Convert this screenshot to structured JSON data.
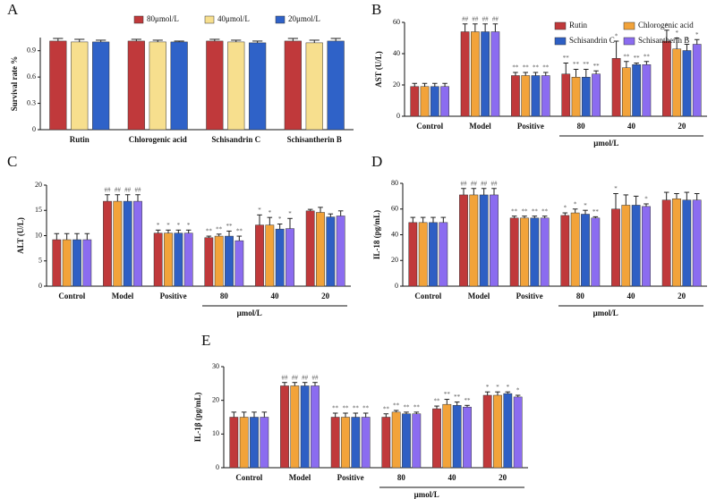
{
  "chart_data": [
    {
      "type": "bar",
      "label": "A",
      "ylabel": "Survival rate %",
      "legend": "top",
      "categories": [
        "Rutin",
        "Chlorogenic acid",
        "Schisandrin C",
        "Schisantherin B"
      ],
      "ylim": [
        0,
        1.05
      ],
      "yticks": [
        0,
        0.3,
        0.6,
        0.9
      ],
      "series": [
        {
          "name": "80μmol/L",
          "color": "#c0393b",
          "values": [
            1.01,
            1.01,
            1.01,
            1.01
          ],
          "errors": [
            0.03,
            0.02,
            0.02,
            0.03
          ]
        },
        {
          "name": "40μmol/L",
          "color": "#f7df8e",
          "values": [
            1.0,
            1.0,
            1.0,
            0.99
          ],
          "errors": [
            0.03,
            0.02,
            0.02,
            0.03
          ]
        },
        {
          "name": "20μmol/L",
          "color": "#2f62c8",
          "values": [
            1.0,
            1.0,
            0.99,
            1.01
          ],
          "errors": [
            0.02,
            0.01,
            0.02,
            0.03
          ]
        }
      ]
    },
    {
      "type": "bar",
      "label": "B",
      "ylabel": "AST (U/L)",
      "legend": "top-right",
      "x_label": "μmol/L",
      "categories": [
        "Control",
        "Model",
        "Positive",
        "80",
        "40",
        "20"
      ],
      "ylim": [
        0,
        60
      ],
      "yticks": [
        0,
        20,
        40,
        60
      ],
      "series": [
        {
          "name": "Rutin",
          "color": "#c0393b",
          "values": [
            19,
            54,
            26,
            27,
            37,
            48
          ],
          "errors": [
            2,
            5,
            2,
            7,
            11,
            7
          ],
          "annotations": [
            null,
            "##",
            "**",
            "**",
            "*",
            "*"
          ]
        },
        {
          "name": "Chlorogenic acid",
          "color": "#f2a33a",
          "values": [
            19,
            54,
            26,
            25,
            31,
            43
          ],
          "errors": [
            2,
            5,
            2,
            5,
            4,
            7
          ],
          "annotations": [
            null,
            "##",
            "**",
            "**",
            "**",
            "*"
          ]
        },
        {
          "name": "Schisandrin C",
          "color": "#2e5fc4",
          "values": [
            19,
            54,
            26,
            25,
            33,
            42
          ],
          "errors": [
            2,
            5,
            2,
            5,
            1,
            4
          ],
          "annotations": [
            null,
            "##",
            "**",
            "**",
            "**",
            "*"
          ]
        },
        {
          "name": "Schisantherin B",
          "color": "#8b6cf0",
          "values": [
            19,
            54,
            26,
            27,
            33,
            46
          ],
          "errors": [
            2,
            5,
            2,
            2,
            2,
            3
          ],
          "annotations": [
            null,
            "##",
            "**",
            "**",
            "**",
            "*"
          ]
        }
      ]
    },
    {
      "type": "bar",
      "label": "C",
      "ylabel": "ALT (U/L)",
      "x_label": "μmol/L",
      "categories": [
        "Control",
        "Model",
        "Positive",
        "80",
        "40",
        "20"
      ],
      "ylim": [
        0,
        20
      ],
      "yticks": [
        0,
        5,
        10,
        15,
        20
      ],
      "series": [
        {
          "name": "Rutin",
          "color": "#c0393b",
          "values": [
            9.2,
            16.8,
            10.5,
            9.6,
            12.1,
            14.9
          ],
          "errors": [
            1.2,
            1.3,
            0.6,
            0.3,
            2,
            0.3
          ],
          "annotations": [
            null,
            "##",
            "*",
            "**",
            "*",
            null
          ]
        },
        {
          "name": "Chlorogenic acid",
          "color": "#f2a33a",
          "values": [
            9.2,
            16.8,
            10.5,
            9.9,
            12.1,
            14.6
          ],
          "errors": [
            1.2,
            1.3,
            0.6,
            0.4,
            1.5,
            1
          ],
          "annotations": [
            null,
            "##",
            "*",
            "**",
            "*",
            null
          ]
        },
        {
          "name": "Schisandrin C",
          "color": "#2e5fc4",
          "values": [
            9.2,
            16.8,
            10.5,
            9.9,
            11.3,
            13.7
          ],
          "errors": [
            1.2,
            1.3,
            0.6,
            1,
            1,
            0.6
          ],
          "annotations": [
            null,
            "##",
            "*",
            "**",
            "*",
            null
          ]
        },
        {
          "name": "Schisantherin B",
          "color": "#8b6cf0",
          "values": [
            9.2,
            16.8,
            10.5,
            9.0,
            11.4,
            13.9
          ],
          "errors": [
            1.2,
            1.3,
            0.6,
            0.9,
            2,
            1
          ],
          "annotations": [
            null,
            "##",
            "*",
            "**",
            "*",
            null
          ]
        }
      ]
    },
    {
      "type": "bar",
      "label": "D",
      "ylabel": "IL-18 (pg/mL)",
      "x_label": "μmol/L",
      "categories": [
        "Control",
        "Model",
        "Positive",
        "80",
        "40",
        "20"
      ],
      "ylim": [
        0,
        80
      ],
      "yticks": [
        0,
        20,
        40,
        60,
        80
      ],
      "series": [
        {
          "name": "Rutin",
          "color": "#c0393b",
          "values": [
            49.5,
            71,
            53,
            55,
            60,
            67
          ],
          "errors": [
            4,
            5,
            1.5,
            2,
            12,
            6
          ],
          "annotations": [
            null,
            "##",
            "**",
            "*",
            "*",
            null
          ]
        },
        {
          "name": "Chlorogenic acid",
          "color": "#f2a33a",
          "values": [
            49.5,
            71,
            53,
            57,
            63,
            68
          ],
          "errors": [
            4,
            5,
            1.5,
            3,
            8,
            4
          ],
          "annotations": [
            null,
            "##",
            "**",
            "*",
            null,
            null
          ]
        },
        {
          "name": "Schisandrin C",
          "color": "#2e5fc4",
          "values": [
            49.5,
            71,
            53,
            56,
            63,
            67
          ],
          "errors": [
            4,
            5,
            1.5,
            3,
            7,
            6
          ],
          "annotations": [
            null,
            "##",
            "**",
            "*",
            null,
            null
          ]
        },
        {
          "name": "Schisantherin B",
          "color": "#8b6cf0",
          "values": [
            49.5,
            71,
            53,
            53,
            62,
            67
          ],
          "errors": [
            4,
            5,
            1.5,
            1,
            2,
            5
          ],
          "annotations": [
            null,
            "##",
            "**",
            "**",
            "*",
            null
          ]
        }
      ]
    },
    {
      "type": "bar",
      "label": "E",
      "ylabel": "IL-1β (pg/mL)",
      "x_label": "μmol/L",
      "categories": [
        "Control",
        "Model",
        "Positive",
        "80",
        "40",
        "20"
      ],
      "ylim": [
        0,
        30
      ],
      "yticks": [
        0,
        10,
        20,
        30
      ],
      "series": [
        {
          "name": "Rutin",
          "color": "#c0393b",
          "values": [
            15,
            24.3,
            15,
            15,
            17.5,
            21.5
          ],
          "errors": [
            1.5,
            1,
            1.2,
            1,
            0.8,
            1
          ],
          "annotations": [
            null,
            "##",
            "**",
            "**",
            "**",
            "*"
          ]
        },
        {
          "name": "Chlorogenic acid",
          "color": "#f2a33a",
          "values": [
            15,
            24.3,
            15,
            16.5,
            18.8,
            21.5
          ],
          "errors": [
            1.5,
            1,
            1.2,
            0.5,
            1.5,
            1
          ],
          "annotations": [
            null,
            "##",
            "**",
            "**",
            "**",
            "*"
          ]
        },
        {
          "name": "Schisandrin C",
          "color": "#2e5fc4",
          "values": [
            15,
            24.3,
            15,
            16,
            18.5,
            22
          ],
          "errors": [
            1.5,
            1,
            1.2,
            0.5,
            1,
            0.5
          ],
          "annotations": [
            null,
            "##",
            "**",
            "**",
            "**",
            "*"
          ]
        },
        {
          "name": "Schisantherin B",
          "color": "#8b6cf0",
          "values": [
            15,
            24.3,
            15,
            16,
            18,
            21
          ],
          "errors": [
            1.5,
            1,
            1.2,
            0.5,
            0.5,
            0.5
          ],
          "annotations": [
            null,
            "##",
            "**",
            "**",
            "**",
            "*"
          ]
        }
      ]
    }
  ]
}
